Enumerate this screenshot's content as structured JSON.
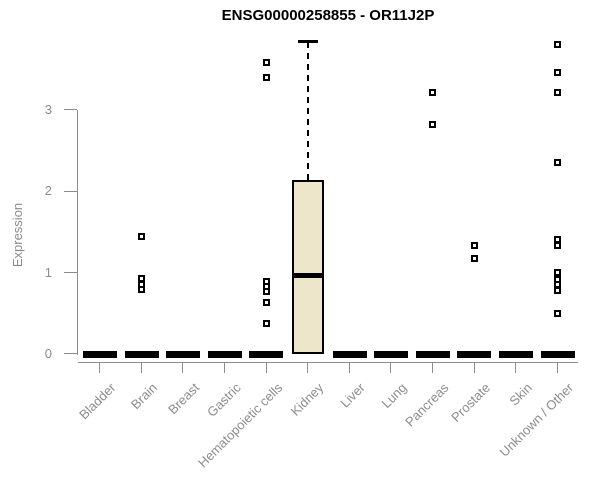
{
  "colors": {
    "box_fill": "#EDE6CB",
    "box_border": "#000000",
    "median": "#000000",
    "outlier_border": "#000000",
    "axis": "#8C8C8C",
    "title": "#000000",
    "background": "#FFFFFF"
  },
  "chart_data": {
    "type": "boxplot",
    "title": "ENSG00000258855 - OR11J2P",
    "xlabel": "",
    "ylabel": "Expression",
    "ylim": [
      0,
      3.9
    ],
    "yticks": [
      0,
      1,
      2,
      3
    ],
    "grid": false,
    "legend": null,
    "categories": [
      "Bladder",
      "Brain",
      "Breast",
      "Gastric",
      "Hematopoietic cells",
      "Kidney",
      "Liver",
      "Lung",
      "Pancreas",
      "Prostate",
      "Skin",
      "Unknown / Other"
    ],
    "boxes": [
      {
        "category": "Bladder",
        "min": 0,
        "q1": 0,
        "median": 0,
        "q3": 0,
        "max": 0,
        "outliers": []
      },
      {
        "category": "Brain",
        "min": 0,
        "q1": 0,
        "median": 0,
        "q3": 0,
        "max": 0,
        "outliers": [
          1.44,
          0.93,
          0.86,
          0.79
        ]
      },
      {
        "category": "Breast",
        "min": 0,
        "q1": 0,
        "median": 0,
        "q3": 0,
        "max": 0,
        "outliers": []
      },
      {
        "category": "Gastric",
        "min": 0,
        "q1": 0,
        "median": 0,
        "q3": 0,
        "max": 0,
        "outliers": []
      },
      {
        "category": "Hematopoietic cells",
        "min": 0,
        "q1": 0,
        "median": 0,
        "q3": 0,
        "max": 0,
        "outliers": [
          3.58,
          3.4,
          0.89,
          0.83,
          0.77,
          0.63,
          0.38
        ]
      },
      {
        "category": "Kidney",
        "min": 0,
        "q1": 0,
        "median": 0.97,
        "q3": 2.14,
        "max": 3.84,
        "outliers": []
      },
      {
        "category": "Liver",
        "min": 0,
        "q1": 0,
        "median": 0,
        "q3": 0,
        "max": 0,
        "outliers": []
      },
      {
        "category": "Lung",
        "min": 0,
        "q1": 0,
        "median": 0,
        "q3": 0,
        "max": 0,
        "outliers": []
      },
      {
        "category": "Pancreas",
        "min": 0,
        "q1": 0,
        "median": 0,
        "q3": 0,
        "max": 0,
        "outliers": [
          3.21,
          2.82
        ]
      },
      {
        "category": "Prostate",
        "min": 0,
        "q1": 0,
        "median": 0,
        "q3": 0,
        "max": 0,
        "outliers": [
          1.34,
          1.18
        ]
      },
      {
        "category": "Skin",
        "min": 0,
        "q1": 0,
        "median": 0,
        "q3": 0,
        "max": 0,
        "outliers": []
      },
      {
        "category": "Unknown / Other",
        "min": 0,
        "q1": 0,
        "median": 0,
        "q3": 0,
        "max": 0,
        "outliers": [
          3.81,
          3.46,
          3.22,
          2.35,
          1.41,
          1.34,
          1.0,
          0.92,
          0.85,
          0.78,
          0.5
        ]
      }
    ]
  }
}
